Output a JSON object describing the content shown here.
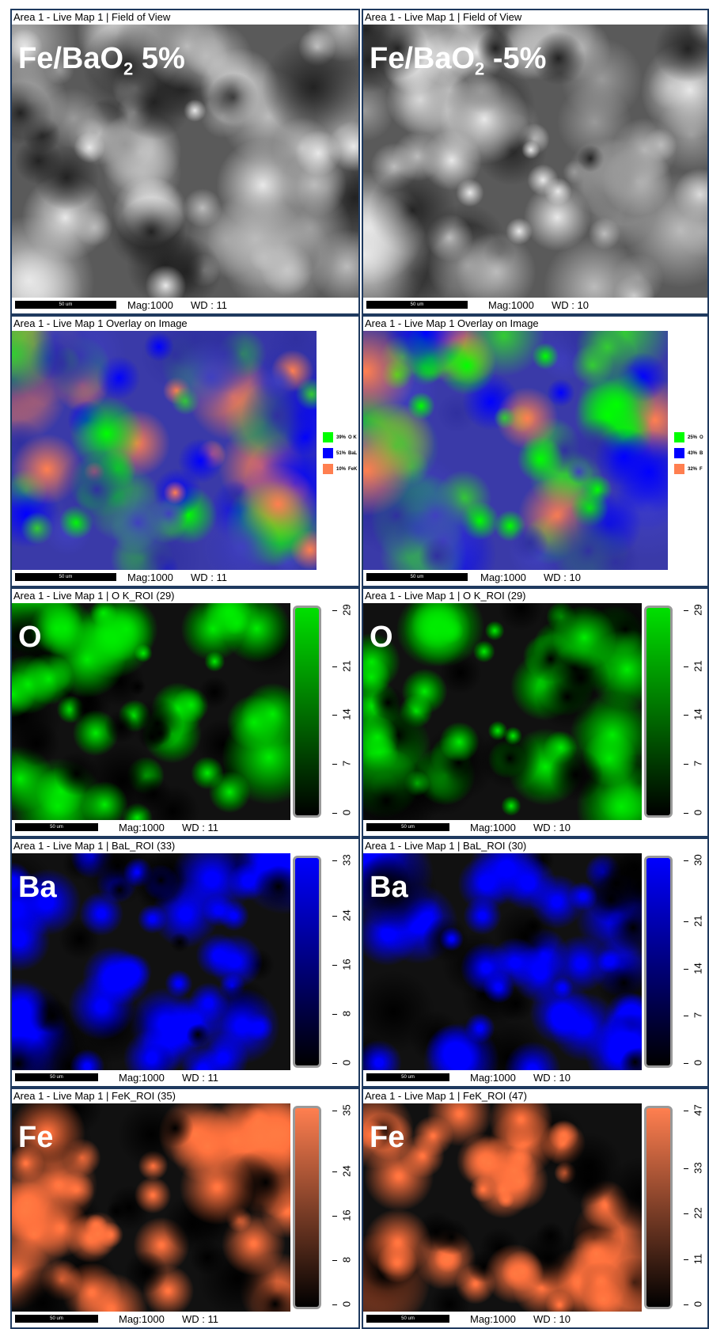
{
  "panels": [
    {
      "kind": "sem",
      "header": "Area 1 - Live Map 1 | Field of View",
      "label": {
        "text": "Fe/BaO",
        "sub": "2",
        "after": " 5%"
      },
      "scalebar": "50 um",
      "mag": "Mag:1000",
      "wd": "WD : 11"
    },
    {
      "kind": "sem",
      "header": "Area 1 - Live Map 1 | Field of View",
      "label": {
        "text": "Fe/BaO",
        "sub": "2",
        "after": " -5%"
      },
      "scalebar": "50 um",
      "mag": "Mag:1000",
      "wd": "WD : 10"
    },
    {
      "kind": "overlay",
      "header": "Area 1 - Live Map 1 Overlay on Image",
      "scalebar": "50 um",
      "mag": "Mag:1000",
      "wd": "WD : 11",
      "legend": [
        {
          "pct": "39%",
          "name": "O K",
          "color": "#00ff00"
        },
        {
          "pct": "51%",
          "name": "BaL",
          "color": "#0000ff"
        },
        {
          "pct": "10%",
          "name": "FeK",
          "color": "#ff7f50"
        }
      ]
    },
    {
      "kind": "overlay",
      "header": "Area 1 - Live Map 1 Overlay on Image",
      "scalebar": "50 um",
      "mag": "Mag:1000",
      "wd": "WD : 10",
      "legend": [
        {
          "pct": "25%",
          "name": "O",
          "color": "#00ff00"
        },
        {
          "pct": "43%",
          "name": "B",
          "color": "#0000ff"
        },
        {
          "pct": "32%",
          "name": "F",
          "color": "#ff7f50"
        }
      ]
    },
    {
      "kind": "map",
      "color": "#00e000",
      "header": "Area 1 - Live Map 1 | O K_ROI (29)",
      "label": {
        "text": "O"
      },
      "scalebar": "50 um",
      "mag": "Mag:1000",
      "wd": "WD : 11",
      "colorbar": {
        "ticks": [
          0,
          7,
          14,
          21,
          29
        ]
      }
    },
    {
      "kind": "map",
      "color": "#00e000",
      "header": "Area 1 - Live Map 1 | O K_ROI (29)",
      "label": {
        "text": "O"
      },
      "scalebar": "50 um",
      "mag": "Mag:1000",
      "wd": "WD : 10",
      "colorbar": {
        "ticks": [
          0,
          7,
          14,
          21,
          29
        ]
      }
    },
    {
      "kind": "map",
      "color": "#0000ff",
      "header": "Area 1 - Live Map 1 | BaL_ROI (33)",
      "label": {
        "text": "Ba"
      },
      "scalebar": "50 um",
      "mag": "Mag:1000",
      "wd": "WD : 11",
      "colorbar": {
        "ticks": [
          0,
          8,
          16,
          24,
          33
        ]
      }
    },
    {
      "kind": "map",
      "color": "#0000ff",
      "header": "Area 1 - Live Map 1 | BaL_ROI (30)",
      "label": {
        "text": "Ba"
      },
      "scalebar": "50 um",
      "mag": "Mag:1000",
      "wd": "WD : 10",
      "colorbar": {
        "ticks": [
          0,
          7,
          14,
          21,
          30
        ]
      }
    },
    {
      "kind": "map",
      "color": "#ff7f50",
      "header": "Area 1 - Live Map 1 | FeK_ROI (35)",
      "label": {
        "text": "Fe"
      },
      "scalebar": "50 um",
      "mag": "Mag:1000",
      "wd": "WD : 11",
      "colorbar": {
        "ticks": [
          0,
          8,
          16,
          24,
          35
        ]
      }
    },
    {
      "kind": "map",
      "color": "#ff7f50",
      "header": "Area 1 - Live Map 1 | FeK_ROI (47)",
      "label": {
        "text": "Fe"
      },
      "scalebar": "50 um",
      "mag": "Mag:1000",
      "wd": "WD : 10",
      "colorbar": {
        "ticks": [
          0,
          11,
          22,
          33,
          47
        ]
      }
    }
  ]
}
